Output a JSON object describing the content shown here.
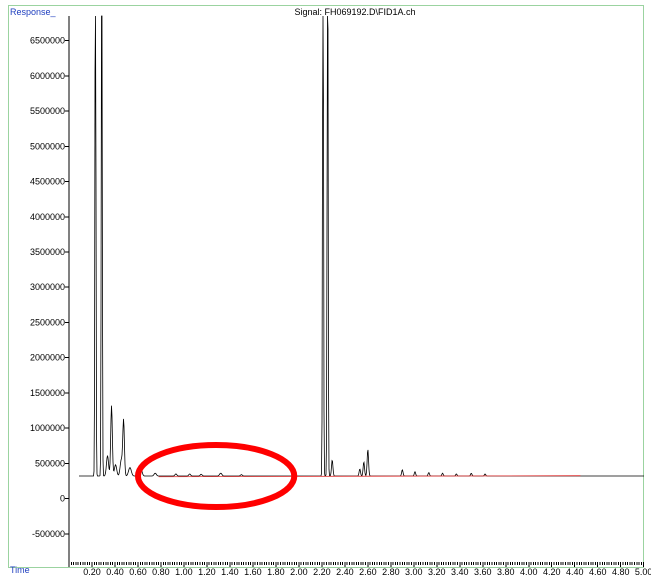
{
  "chart_data": {
    "type": "line",
    "title": "Signal: FH069192.D\\FID1A.ch",
    "ylabel": "Response_",
    "xlabel": "Time",
    "xlim": [
      0.0,
      5.02
    ],
    "ylim": [
      -900000,
      6850000
    ],
    "y_ticks": [
      -500000,
      0,
      500000,
      1000000,
      1500000,
      2000000,
      2500000,
      3000000,
      3500000,
      4000000,
      4500000,
      5000000,
      5500000,
      6000000,
      6500000
    ],
    "y_tick_labels": [
      "-500000",
      "0",
      "500000",
      "1000000",
      "1500000",
      "2000000",
      "2500000",
      "3000000",
      "3500000",
      "4000000",
      "4500000",
      "5000000",
      "5500000",
      "6000000",
      "6500000"
    ],
    "x_ticks": [
      0.2,
      0.4,
      0.6,
      0.8,
      1.0,
      1.2,
      1.4,
      1.6,
      1.8,
      2.0,
      2.2,
      2.4,
      2.6,
      2.8,
      3.0,
      3.2,
      3.4,
      3.6,
      3.8,
      4.0,
      4.2,
      4.4,
      4.6,
      4.8,
      5.0
    ],
    "x_tick_labels": [
      "0.20",
      "0.40",
      "0.60",
      "0.80",
      "1.00",
      "1.20",
      "1.40",
      "1.60",
      "1.80",
      "2.00",
      "2.20",
      "2.40",
      "2.60",
      "2.80",
      "3.00",
      "3.20",
      "3.40",
      "3.60",
      "3.80",
      "4.00",
      "4.20",
      "4.40",
      "4.60",
      "4.80",
      "5.00"
    ],
    "baseline": 320000,
    "series": [
      {
        "color": "#000000",
        "peaks": [
          {
            "t": 0.23,
            "h": 9000000,
            "w": 0.004
          },
          {
            "t": 0.285,
            "h": 9000000,
            "w": 0.004
          },
          {
            "t": 0.335,
            "h": 290000,
            "w": 0.009
          },
          {
            "t": 0.37,
            "h": 1000000,
            "w": 0.007
          },
          {
            "t": 0.405,
            "h": 160000,
            "w": 0.01
          },
          {
            "t": 0.455,
            "h": 230000,
            "w": 0.01
          },
          {
            "t": 0.475,
            "h": 780000,
            "w": 0.007
          },
          {
            "t": 0.53,
            "h": 120000,
            "w": 0.012
          },
          {
            "t": 0.62,
            "h": 150000,
            "w": 0.012
          },
          {
            "t": 0.75,
            "h": 40000,
            "w": 0.01
          },
          {
            "t": 0.93,
            "h": 30000,
            "w": 0.008
          },
          {
            "t": 1.05,
            "h": 30000,
            "w": 0.008
          },
          {
            "t": 1.15,
            "h": 25000,
            "w": 0.008
          },
          {
            "t": 1.32,
            "h": 40000,
            "w": 0.01
          },
          {
            "t": 1.5,
            "h": 20000,
            "w": 0.008
          },
          {
            "t": 2.21,
            "h": 9000000,
            "w": 0.004
          },
          {
            "t": 2.25,
            "h": 9000000,
            "w": 0.004
          },
          {
            "t": 2.29,
            "h": 230000,
            "w": 0.006
          },
          {
            "t": 2.53,
            "h": 100000,
            "w": 0.006
          },
          {
            "t": 2.565,
            "h": 200000,
            "w": 0.006
          },
          {
            "t": 2.6,
            "h": 380000,
            "w": 0.006
          },
          {
            "t": 2.9,
            "h": 90000,
            "w": 0.006
          },
          {
            "t": 3.01,
            "h": 60000,
            "w": 0.006
          },
          {
            "t": 3.13,
            "h": 50000,
            "w": 0.006
          },
          {
            "t": 3.25,
            "h": 40000,
            "w": 0.006
          },
          {
            "t": 3.37,
            "h": 30000,
            "w": 0.006
          },
          {
            "t": 3.5,
            "h": 40000,
            "w": 0.006
          },
          {
            "t": 3.62,
            "h": 30000,
            "w": 0.006
          }
        ]
      },
      {
        "color": "#e03030",
        "x": [
          0.78,
          4.45
        ],
        "y": [
          310000,
          325000
        ]
      }
    ],
    "annotations": [
      {
        "type": "ellipse",
        "color": "#ff0000",
        "cx": 1.28,
        "cy": 320000,
        "rx": 0.68,
        "ry": 440000
      }
    ]
  }
}
